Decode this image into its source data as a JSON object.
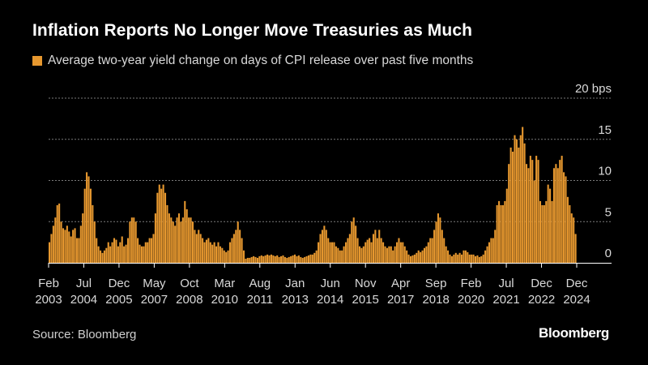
{
  "header": {
    "title": "Inflation Reports No Longer Move Treasuries as Much"
  },
  "footer": {
    "source": "Source: Bloomberg",
    "brand": "Bloomberg"
  },
  "colors": {
    "bar": "#e7982f",
    "grid": "#7a7a7a",
    "background": "#000000"
  },
  "chart_data": {
    "type": "bar",
    "title": "Inflation Reports No Longer Move Treasuries as Much",
    "legend": "Average two-year yield change on days of CPI release over past five months",
    "ylabel": "bps",
    "ylim": [
      0,
      20
    ],
    "yticks": [
      {
        "value": 0,
        "label": "0"
      },
      {
        "value": 5,
        "label": "5"
      },
      {
        "value": 10,
        "label": "10"
      },
      {
        "value": 15,
        "label": "15"
      },
      {
        "value": 20,
        "label": "20 bps"
      }
    ],
    "start": "Feb 2003",
    "end": "Dec 2024",
    "xticks": [
      {
        "month": "Feb",
        "year": "2003"
      },
      {
        "month": "Jul",
        "year": "2004"
      },
      {
        "month": "Dec",
        "year": "2005"
      },
      {
        "month": "May",
        "year": "2007"
      },
      {
        "month": "Oct",
        "year": "2008"
      },
      {
        "month": "Mar",
        "year": "2010"
      },
      {
        "month": "Aug",
        "year": "2011"
      },
      {
        "month": "Jan",
        "year": "2013"
      },
      {
        "month": "Jun",
        "year": "2014"
      },
      {
        "month": "Nov",
        "year": "2015"
      },
      {
        "month": "Apr",
        "year": "2017"
      },
      {
        "month": "Sep",
        "year": "2018"
      },
      {
        "month": "Feb",
        "year": "2020"
      },
      {
        "month": "Jul",
        "year": "2021"
      },
      {
        "month": "Dec",
        "year": "2022"
      },
      {
        "month": "Dec",
        "year": "2024"
      }
    ],
    "values": [
      2.5,
      3.5,
      4.5,
      5.5,
      7.0,
      7.2,
      5.0,
      4.2,
      4.0,
      4.5,
      3.8,
      3.2,
      4.0,
      4.2,
      3.0,
      3.0,
      4.5,
      6.0,
      9.0,
      11.0,
      10.5,
      9.0,
      7.0,
      5.0,
      3.0,
      2.0,
      1.5,
      1.2,
      1.5,
      1.8,
      2.5,
      2.0,
      2.5,
      3.0,
      2.8,
      2.0,
      2.5,
      3.2,
      2.0,
      2.2,
      3.0,
      5.0,
      5.5,
      5.5,
      5.0,
      3.0,
      2.2,
      2.0,
      2.0,
      2.5,
      2.5,
      3.0,
      3.0,
      3.5,
      6.0,
      8.5,
      9.5,
      9.0,
      9.5,
      8.5,
      7.0,
      6.0,
      5.5,
      5.0,
      4.5,
      5.5,
      6.0,
      5.0,
      5.5,
      7.5,
      6.5,
      5.5,
      5.5,
      5.0,
      4.0,
      3.5,
      4.0,
      3.5,
      3.0,
      2.5,
      2.8,
      3.0,
      2.5,
      2.2,
      2.5,
      2.0,
      2.5,
      2.0,
      1.8,
      1.5,
      1.3,
      1.5,
      2.5,
      3.0,
      3.5,
      4.0,
      5.0,
      4.0,
      3.0,
      1.5,
      0.5,
      0.6,
      0.6,
      0.7,
      0.8,
      0.7,
      0.6,
      0.8,
      0.9,
      0.8,
      0.9,
      1.0,
      0.9,
      1.0,
      0.9,
      0.8,
      0.9,
      0.7,
      0.8,
      0.9,
      0.7,
      0.6,
      0.7,
      0.8,
      0.9,
      1.0,
      0.8,
      0.9,
      0.7,
      0.6,
      0.7,
      0.8,
      0.9,
      1.0,
      1.0,
      1.2,
      1.5,
      2.5,
      3.5,
      4.0,
      4.5,
      4.0,
      3.0,
      2.5,
      2.5,
      2.5,
      2.0,
      1.8,
      1.5,
      1.5,
      2.0,
      2.5,
      3.0,
      3.5,
      5.0,
      5.5,
      4.5,
      3.0,
      2.0,
      1.8,
      2.0,
      2.5,
      2.8,
      3.0,
      2.5,
      3.5,
      4.0,
      3.0,
      4.0,
      3.0,
      2.5,
      2.0,
      1.8,
      2.0,
      2.0,
      1.5,
      2.0,
      2.5,
      3.0,
      2.5,
      2.5,
      2.0,
      1.5,
      1.0,
      0.8,
      0.9,
      1.0,
      1.2,
      1.5,
      1.3,
      1.5,
      1.8,
      2.0,
      2.5,
      3.0,
      3.0,
      4.0,
      5.0,
      6.0,
      5.5,
      4.0,
      3.0,
      2.0,
      1.5,
      1.0,
      0.8,
      1.0,
      1.2,
      1.0,
      1.2,
      1.0,
      1.5,
      1.5,
      1.3,
      1.0,
      1.0,
      1.0,
      0.8,
      0.9,
      0.7,
      0.8,
      1.0,
      1.5,
      2.0,
      2.5,
      3.0,
      3.0,
      4.0,
      7.0,
      7.5,
      7.0,
      7.0,
      7.5,
      9.0,
      12.0,
      14.0,
      13.5,
      15.5,
      15.0,
      14.0,
      15.5,
      16.5,
      14.5,
      12.0,
      11.5,
      13.0,
      12.5,
      10.0,
      13.0,
      12.5,
      7.5,
      7.0,
      7.0,
      7.5,
      9.5,
      9.0,
      7.5,
      11.5,
      12.0,
      11.5,
      12.5,
      13.0,
      11.0,
      10.5,
      8.0,
      7.0,
      6.0,
      5.5,
      3.5
    ]
  }
}
